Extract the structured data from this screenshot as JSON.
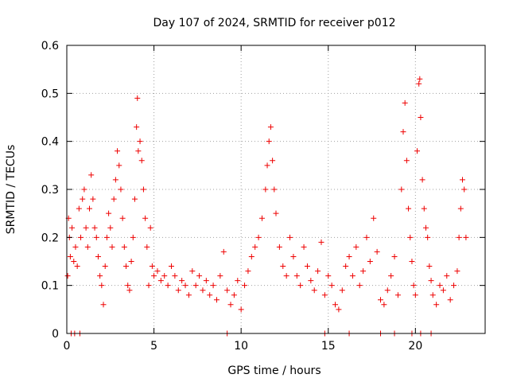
{
  "chart_data": {
    "type": "scatter",
    "title": "Day 107 of 2024, SRMTID for receiver p012",
    "xlabel": "GPS time / hours",
    "ylabel": "SRMTID / TECUs",
    "xlim": [
      0,
      24
    ],
    "ylim": [
      0,
      0.6
    ],
    "xticks": [
      "0",
      "5",
      "10",
      "15",
      "20"
    ],
    "yticks": [
      "0",
      "0.1",
      "0.2",
      "0.3",
      "0.4",
      "0.5",
      "0.6"
    ],
    "grid": true,
    "marker": "plus",
    "color": "#ee0000",
    "series": [
      {
        "name": "SRMTID",
        "points": [
          [
            0.05,
            0.12
          ],
          [
            0.1,
            0.24
          ],
          [
            0.15,
            0.2
          ],
          [
            0.2,
            0.16
          ],
          [
            0.3,
            0.22
          ],
          [
            0.4,
            0.15
          ],
          [
            0.5,
            0.18
          ],
          [
            0.6,
            0.14
          ],
          [
            0.7,
            0.26
          ],
          [
            0.8,
            0.2
          ],
          [
            0.9,
            0.28
          ],
          [
            1.0,
            0.3
          ],
          [
            1.1,
            0.22
          ],
          [
            1.2,
            0.18
          ],
          [
            1.3,
            0.26
          ],
          [
            1.4,
            0.33
          ],
          [
            1.5,
            0.28
          ],
          [
            1.6,
            0.22
          ],
          [
            1.7,
            0.2
          ],
          [
            1.8,
            0.16
          ],
          [
            1.9,
            0.12
          ],
          [
            2.0,
            0.1
          ],
          [
            2.1,
            0.06
          ],
          [
            2.2,
            0.14
          ],
          [
            2.3,
            0.2
          ],
          [
            2.4,
            0.25
          ],
          [
            2.5,
            0.22
          ],
          [
            2.6,
            0.18
          ],
          [
            2.7,
            0.28
          ],
          [
            2.8,
            0.32
          ],
          [
            2.9,
            0.38
          ],
          [
            3.0,
            0.35
          ],
          [
            3.1,
            0.3
          ],
          [
            3.2,
            0.24
          ],
          [
            3.3,
            0.18
          ],
          [
            3.4,
            0.14
          ],
          [
            3.5,
            0.1
          ],
          [
            3.6,
            0.09
          ],
          [
            3.7,
            0.15
          ],
          [
            3.8,
            0.2
          ],
          [
            3.9,
            0.28
          ],
          [
            4.0,
            0.43
          ],
          [
            4.05,
            0.49
          ],
          [
            4.1,
            0.38
          ],
          [
            4.2,
            0.4
          ],
          [
            4.3,
            0.36
          ],
          [
            4.4,
            0.3
          ],
          [
            4.5,
            0.24
          ],
          [
            4.6,
            0.18
          ],
          [
            4.7,
            0.1
          ],
          [
            4.8,
            0.22
          ],
          [
            4.9,
            0.14
          ],
          [
            5.0,
            0.12
          ],
          [
            5.2,
            0.13
          ],
          [
            5.4,
            0.11
          ],
          [
            5.6,
            0.12
          ],
          [
            5.8,
            0.1
          ],
          [
            6.0,
            0.14
          ],
          [
            6.2,
            0.12
          ],
          [
            6.4,
            0.09
          ],
          [
            6.6,
            0.11
          ],
          [
            6.8,
            0.1
          ],
          [
            7.0,
            0.08
          ],
          [
            7.2,
            0.13
          ],
          [
            7.4,
            0.1
          ],
          [
            7.6,
            0.12
          ],
          [
            7.8,
            0.09
          ],
          [
            8.0,
            0.11
          ],
          [
            8.2,
            0.08
          ],
          [
            8.4,
            0.1
          ],
          [
            8.6,
            0.07
          ],
          [
            8.8,
            0.12
          ],
          [
            9.0,
            0.17
          ],
          [
            9.2,
            0.09
          ],
          [
            9.4,
            0.06
          ],
          [
            9.6,
            0.08
          ],
          [
            9.8,
            0.11
          ],
          [
            10.0,
            0.05
          ],
          [
            10.2,
            0.1
          ],
          [
            10.4,
            0.13
          ],
          [
            10.6,
            0.16
          ],
          [
            10.8,
            0.18
          ],
          [
            11.0,
            0.2
          ],
          [
            11.2,
            0.24
          ],
          [
            11.4,
            0.3
          ],
          [
            11.5,
            0.35
          ],
          [
            11.6,
            0.4
          ],
          [
            11.7,
            0.43
          ],
          [
            11.8,
            0.36
          ],
          [
            11.9,
            0.3
          ],
          [
            12.0,
            0.25
          ],
          [
            12.2,
            0.18
          ],
          [
            12.4,
            0.14
          ],
          [
            12.6,
            0.12
          ],
          [
            12.8,
            0.2
          ],
          [
            13.0,
            0.16
          ],
          [
            13.2,
            0.12
          ],
          [
            13.4,
            0.1
          ],
          [
            13.6,
            0.18
          ],
          [
            13.8,
            0.14
          ],
          [
            14.0,
            0.11
          ],
          [
            14.2,
            0.09
          ],
          [
            14.4,
            0.13
          ],
          [
            14.6,
            0.19
          ],
          [
            14.8,
            0.08
          ],
          [
            15.0,
            0.12
          ],
          [
            15.2,
            0.1
          ],
          [
            15.4,
            0.06
          ],
          [
            15.6,
            0.05
          ],
          [
            15.8,
            0.09
          ],
          [
            16.0,
            0.14
          ],
          [
            16.2,
            0.16
          ],
          [
            16.4,
            0.12
          ],
          [
            16.6,
            0.18
          ],
          [
            16.8,
            0.1
          ],
          [
            17.0,
            0.13
          ],
          [
            17.2,
            0.2
          ],
          [
            17.4,
            0.15
          ],
          [
            17.6,
            0.24
          ],
          [
            17.8,
            0.17
          ],
          [
            18.0,
            0.07
          ],
          [
            18.2,
            0.06
          ],
          [
            18.4,
            0.09
          ],
          [
            18.6,
            0.12
          ],
          [
            18.8,
            0.16
          ],
          [
            19.0,
            0.08
          ],
          [
            19.2,
            0.3
          ],
          [
            19.3,
            0.42
          ],
          [
            19.4,
            0.48
          ],
          [
            19.5,
            0.36
          ],
          [
            19.6,
            0.26
          ],
          [
            19.7,
            0.2
          ],
          [
            19.8,
            0.15
          ],
          [
            19.9,
            0.1
          ],
          [
            20.0,
            0.08
          ],
          [
            20.1,
            0.38
          ],
          [
            20.2,
            0.52
          ],
          [
            20.25,
            0.53
          ],
          [
            20.3,
            0.45
          ],
          [
            20.4,
            0.32
          ],
          [
            20.5,
            0.26
          ],
          [
            20.6,
            0.22
          ],
          [
            20.7,
            0.2
          ],
          [
            20.8,
            0.14
          ],
          [
            20.9,
            0.11
          ],
          [
            21.0,
            0.08
          ],
          [
            21.2,
            0.06
          ],
          [
            21.4,
            0.1
          ],
          [
            21.6,
            0.09
          ],
          [
            21.8,
            0.12
          ],
          [
            22.0,
            0.07
          ],
          [
            22.2,
            0.1
          ],
          [
            22.4,
            0.13
          ],
          [
            22.5,
            0.2
          ],
          [
            22.6,
            0.26
          ],
          [
            22.7,
            0.32
          ],
          [
            22.8,
            0.3
          ],
          [
            22.9,
            0.2
          ],
          [
            0.25,
            0.0
          ],
          [
            0.45,
            0.0
          ],
          [
            0.75,
            0.0
          ],
          [
            9.2,
            0.0
          ],
          [
            14.8,
            0.0
          ],
          [
            16.2,
            0.0
          ],
          [
            18.0,
            0.0
          ],
          [
            18.8,
            0.0
          ],
          [
            19.8,
            0.0
          ],
          [
            20.3,
            0.0
          ],
          [
            20.9,
            0.0
          ]
        ]
      }
    ]
  }
}
